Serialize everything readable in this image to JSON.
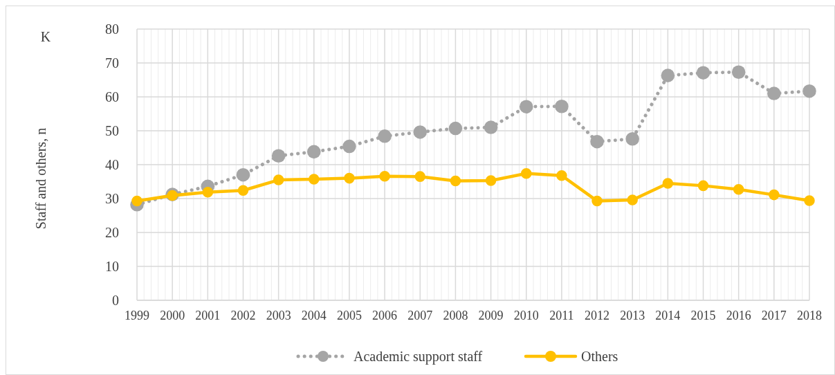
{
  "chart_data": {
    "type": "line",
    "ylabel": "Staff and others, n",
    "annotations": [
      "K"
    ],
    "categories": [
      "1999",
      "2000",
      "2001",
      "2002",
      "2003",
      "2004",
      "2005",
      "2006",
      "2007",
      "2008",
      "2009",
      "2010",
      "2011",
      "2012",
      "2013",
      "2014",
      "2015",
      "2016",
      "2017",
      "2018"
    ],
    "series": [
      {
        "name": "Academic support staff",
        "color": "#a5a5a5",
        "line_style": "dotted",
        "marker": "circle",
        "values": [
          28.2,
          31.2,
          33.6,
          37,
          42.6,
          43.8,
          45.4,
          48.4,
          49.6,
          50.7,
          51,
          57.1,
          57.2,
          46.8,
          47.6,
          66.3,
          67.1,
          67.3,
          61,
          61.7
        ]
      },
      {
        "name": "Others",
        "color": "#ffc000",
        "line_style": "solid",
        "marker": "circle",
        "values": [
          29.3,
          30.9,
          31.9,
          32.4,
          35.5,
          35.7,
          36,
          36.6,
          36.5,
          35.2,
          35.3,
          37.4,
          36.8,
          29.3,
          29.6,
          34.5,
          33.8,
          32.7,
          31.1,
          29.4
        ]
      }
    ],
    "ylim": [
      0,
      80
    ],
    "yticks": [
      0,
      10,
      20,
      30,
      40,
      50,
      60,
      70,
      80
    ],
    "grid": true,
    "legend": "bottom"
  }
}
